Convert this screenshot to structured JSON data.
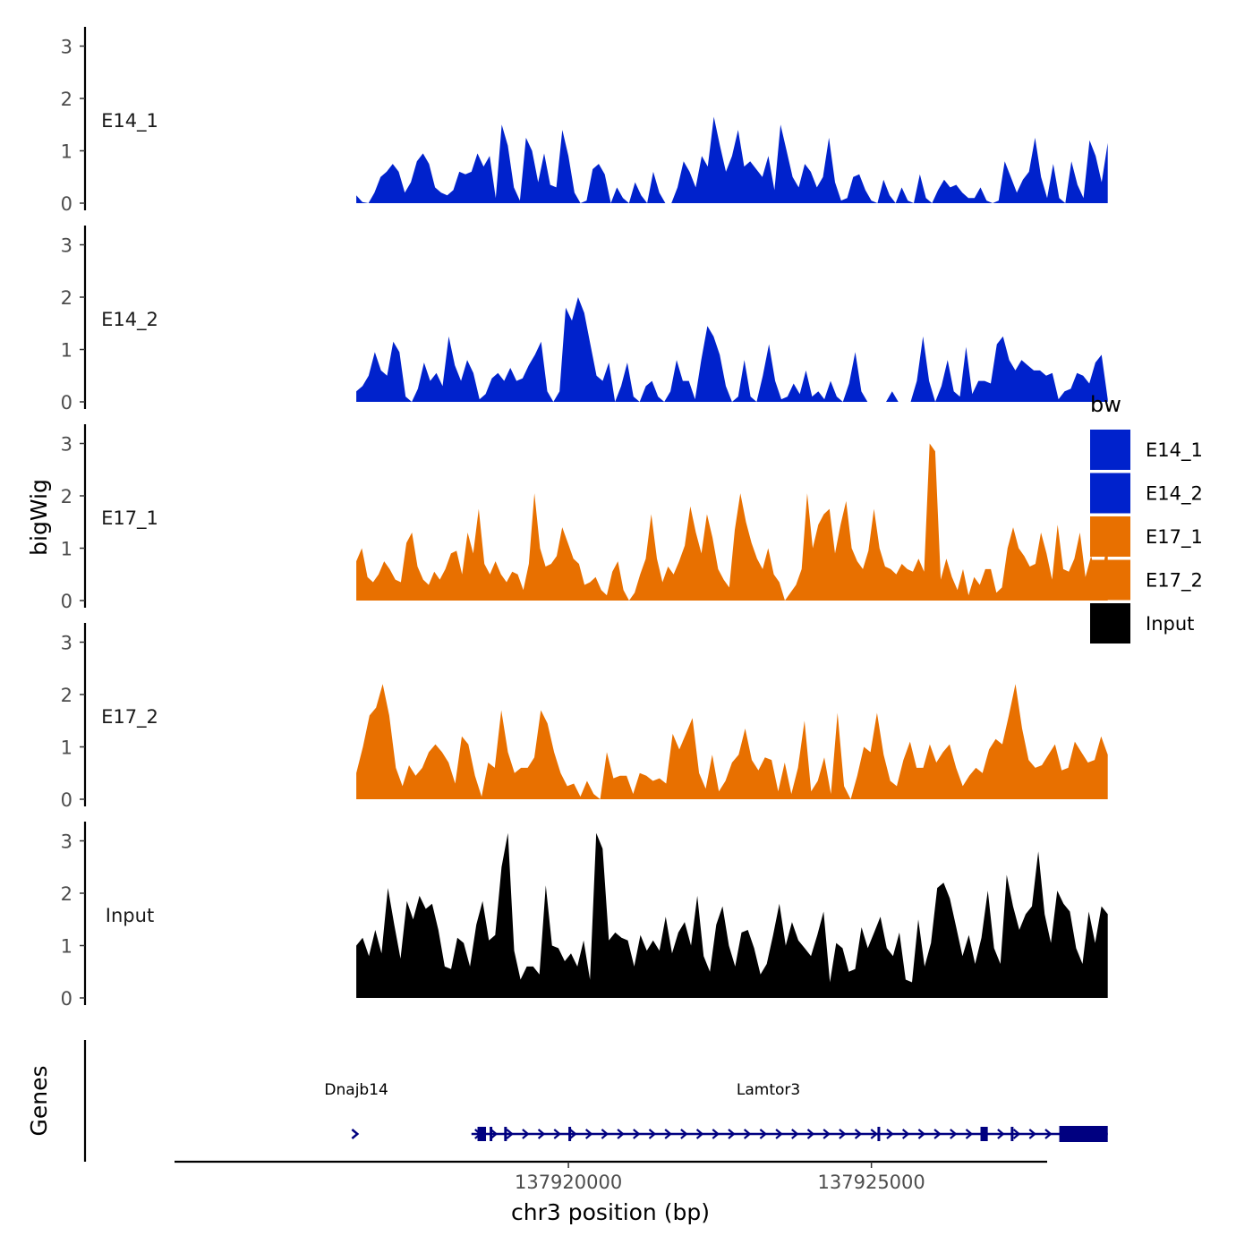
{
  "chart_data": {
    "type": "area",
    "title": "",
    "xlabel": "chr3 position (bp)",
    "ylabel": "bigWig",
    "genes_label": "Genes",
    "xlim": [
      137913500,
      137927900
    ],
    "x_ticks": [
      {
        "value": 137920000,
        "label": "137920000"
      },
      {
        "value": 137925000,
        "label": "137925000"
      }
    ],
    "ylim": [
      0,
      3.3
    ],
    "y_ticks": [
      {
        "value": 0,
        "label": "0"
      },
      {
        "value": 1,
        "label": "1"
      },
      {
        "value": 2,
        "label": "2"
      },
      {
        "value": 3,
        "label": "3"
      }
    ],
    "x_start": 137916500,
    "x_end": 137928900,
    "legend": {
      "title": "bw",
      "items": [
        {
          "name": "E14_1",
          "color": "#0022cc"
        },
        {
          "name": "E14_2",
          "color": "#0022cc"
        },
        {
          "name": "E17_1",
          "color": "#e87000"
        },
        {
          "name": "E17_2",
          "color": "#e87000"
        },
        {
          "name": "Input",
          "color": "#000000"
        }
      ]
    },
    "series": [
      {
        "name": "E14_1",
        "color": "#0022cc",
        "values": [
          0.15,
          0.02,
          0,
          0.2,
          0.5,
          0.6,
          0.75,
          0.6,
          0.2,
          0.4,
          0.8,
          0.95,
          0.75,
          0.3,
          0.2,
          0.15,
          0.25,
          0.6,
          0.55,
          0.6,
          0.95,
          0.7,
          0.9,
          0.1,
          1.5,
          1.1,
          0.3,
          0.05,
          1.25,
          1.0,
          0.4,
          0.95,
          0.35,
          0.3,
          1.4,
          0.9,
          0.2,
          0,
          0.05,
          0.65,
          0.75,
          0.55,
          0,
          0.3,
          0.1,
          0,
          0.4,
          0.15,
          0,
          0.6,
          0.2,
          0,
          0,
          0.3,
          0.8,
          0.6,
          0.3,
          0.9,
          0.7,
          1.65,
          1.1,
          0.6,
          0.9,
          1.4,
          0.7,
          0.8,
          0.65,
          0.5,
          0.9,
          0.25,
          1.5,
          1.0,
          0.5,
          0.3,
          0.75,
          0.6,
          0.3,
          0.5,
          1.25,
          0.4,
          0.05,
          0.1,
          0.5,
          0.55,
          0.25,
          0.05,
          0,
          0.45,
          0.15,
          0,
          0.3,
          0.05,
          0,
          0.55,
          0.1,
          0,
          0.25,
          0.45,
          0.3,
          0.35,
          0.2,
          0.1,
          0.1,
          0.3,
          0.05,
          0,
          0.05,
          0.8,
          0.5,
          0.2,
          0.45,
          0.6,
          1.25,
          0.5,
          0.1,
          0.75,
          0.1,
          0,
          0.8,
          0.35,
          0.1,
          1.2,
          0.9,
          0.4,
          1.15
        ],
        "label_key": "E14_1"
      },
      {
        "name": "E14_2",
        "color": "#0022cc",
        "values": [
          0.2,
          0.3,
          0.5,
          0.95,
          0.6,
          0.5,
          1.15,
          0.95,
          0.1,
          0,
          0.25,
          0.75,
          0.4,
          0.55,
          0.3,
          1.25,
          0.7,
          0.4,
          0.8,
          0.55,
          0.05,
          0.15,
          0.45,
          0.55,
          0.4,
          0.65,
          0.4,
          0.45,
          0.7,
          0.9,
          1.15,
          0.2,
          0,
          0.2,
          1.8,
          1.55,
          2.0,
          1.7,
          1.1,
          0.5,
          0.4,
          0.75,
          0,
          0.3,
          0.75,
          0.1,
          0,
          0.3,
          0.4,
          0.1,
          0,
          0.2,
          0.8,
          0.4,
          0.4,
          0.05,
          0.8,
          1.45,
          1.25,
          0.9,
          0.3,
          0,
          0.1,
          0.8,
          0.1,
          0,
          0.5,
          1.1,
          0.4,
          0.05,
          0.1,
          0.35,
          0.15,
          0.6,
          0.1,
          0.2,
          0.05,
          0.4,
          0.1,
          0,
          0.35,
          0.95,
          0.2,
          0,
          0,
          0,
          0,
          0.2,
          0,
          0,
          0,
          0.4,
          1.25,
          0.4,
          0,
          0.3,
          0.8,
          0.2,
          0.1,
          1.05,
          0.15,
          0.4,
          0.4,
          0.35,
          1.1,
          1.25,
          0.8,
          0.6,
          0.8,
          0.7,
          0.6,
          0.6,
          0.5,
          0.55,
          0.05,
          0.2,
          0.25,
          0.55,
          0.5,
          0.35,
          0.75,
          0.9,
          0.05
        ],
        "label_key": "E14_2"
      },
      {
        "name": "E17_1",
        "color": "#e87000",
        "values": [
          0.75,
          1.0,
          0.45,
          0.35,
          0.5,
          0.75,
          0.6,
          0.4,
          0.35,
          1.1,
          1.3,
          0.65,
          0.4,
          0.3,
          0.55,
          0.4,
          0.6,
          0.9,
          0.95,
          0.5,
          1.3,
          0.9,
          1.75,
          0.7,
          0.5,
          0.75,
          0.5,
          0.35,
          0.55,
          0.5,
          0.2,
          0.7,
          2.05,
          1.0,
          0.65,
          0.7,
          0.85,
          1.4,
          1.1,
          0.8,
          0.7,
          0.3,
          0.35,
          0.45,
          0.2,
          0.1,
          0.55,
          0.75,
          0.2,
          0,
          0.15,
          0.5,
          0.8,
          1.65,
          0.8,
          0.35,
          0.65,
          0.5,
          0.75,
          1.05,
          1.8,
          1.3,
          0.9,
          1.65,
          1.2,
          0.6,
          0.4,
          0.25,
          1.35,
          2.05,
          1.5,
          1.1,
          0.8,
          0.6,
          1.0,
          0.5,
          0.35,
          0,
          0.15,
          0.3,
          0.6,
          2.05,
          1.0,
          1.45,
          1.65,
          1.75,
          0.9,
          1.45,
          1.9,
          1.0,
          0.75,
          0.6,
          0.95,
          1.75,
          1.0,
          0.65,
          0.6,
          0.5,
          0.7,
          0.6,
          0.55,
          0.8,
          0.55,
          3.0,
          2.85,
          0.4,
          0.8,
          0.45,
          0.2,
          0.6,
          0.1,
          0.45,
          0.3,
          0.6,
          0.6,
          0.15,
          0.25,
          1.0,
          1.4,
          1.0,
          0.85,
          0.65,
          0.7,
          1.3,
          0.9,
          0.4,
          1.45,
          0.6,
          0.55,
          0.8,
          1.3,
          0.45,
          0.85,
          0.45,
          0.5,
          1.2
        ],
        "label_key": "E17_1"
      },
      {
        "name": "E17_2",
        "color": "#e87000",
        "values": [
          0.5,
          1.0,
          1.6,
          1.75,
          2.2,
          1.6,
          0.6,
          0.25,
          0.65,
          0.45,
          0.6,
          0.9,
          1.05,
          0.9,
          0.7,
          0.3,
          1.2,
          1.05,
          0.45,
          0.05,
          0.7,
          0.6,
          1.7,
          0.9,
          0.5,
          0.6,
          0.6,
          0.8,
          1.7,
          1.45,
          0.9,
          0.5,
          0.25,
          0.3,
          0.05,
          0.35,
          0.1,
          0,
          0.9,
          0.4,
          0.45,
          0.45,
          0.1,
          0.5,
          0.45,
          0.35,
          0.4,
          0.3,
          1.25,
          0.95,
          1.25,
          1.55,
          0.5,
          0.2,
          0.85,
          0.15,
          0.35,
          0.7,
          0.85,
          1.35,
          0.75,
          0.55,
          0.8,
          0.75,
          0.15,
          0.7,
          0.1,
          0.6,
          1.5,
          0.15,
          0.35,
          0.8,
          0.1,
          1.65,
          0.25,
          0,
          0.45,
          1.0,
          0.9,
          1.65,
          0.85,
          0.35,
          0.25,
          0.75,
          1.1,
          0.6,
          0.6,
          1.05,
          0.7,
          0.9,
          1.05,
          0.6,
          0.25,
          0.45,
          0.6,
          0.5,
          0.95,
          1.15,
          1.05,
          1.6,
          2.2,
          1.35,
          0.75,
          0.6,
          0.65,
          0.85,
          1.05,
          0.55,
          0.6,
          1.1,
          0.9,
          0.7,
          0.75,
          1.2,
          0.85
        ],
        "label_key": "E17_2"
      },
      {
        "name": "Input",
        "color": "#000000",
        "values": [
          1.0,
          1.15,
          0.8,
          1.3,
          0.85,
          2.1,
          1.4,
          0.75,
          1.85,
          1.5,
          1.95,
          1.7,
          1.8,
          1.3,
          0.6,
          0.55,
          1.15,
          1.05,
          0.6,
          1.4,
          1.85,
          1.1,
          1.2,
          2.5,
          3.15,
          0.9,
          0.35,
          0.6,
          0.6,
          0.45,
          2.15,
          1.0,
          0.95,
          0.7,
          0.85,
          0.6,
          1.1,
          0.35,
          3.15,
          2.85,
          1.1,
          1.25,
          1.15,
          1.1,
          0.6,
          1.2,
          0.9,
          1.1,
          0.9,
          1.55,
          0.85,
          1.25,
          1.45,
          1.0,
          1.95,
          0.8,
          0.5,
          1.4,
          1.75,
          1.0,
          0.6,
          1.25,
          1.3,
          0.95,
          0.45,
          0.65,
          1.2,
          1.8,
          1.0,
          1.45,
          1.1,
          0.95,
          0.8,
          1.2,
          1.65,
          0.3,
          1.05,
          0.95,
          0.5,
          0.55,
          1.35,
          0.95,
          1.25,
          1.55,
          0.95,
          0.8,
          1.25,
          0.35,
          0.3,
          1.5,
          0.6,
          1.05,
          2.1,
          2.2,
          1.9,
          1.35,
          0.8,
          1.2,
          0.65,
          1.15,
          2.05,
          0.95,
          0.65,
          2.35,
          1.75,
          1.3,
          1.6,
          1.75,
          2.8,
          1.6,
          1.05,
          2.05,
          1.8,
          1.65,
          0.95,
          0.65,
          1.65,
          1.05,
          1.75,
          1.6
        ],
        "label_key": "Input"
      }
    ],
    "genes": [
      {
        "name": "Dnajb14",
        "start": 137916400,
        "end": 137916600,
        "exons": [],
        "label_position": 137916500
      },
      {
        "name": "Lamtor3",
        "start": 137918400,
        "end": 137928900,
        "exons": [
          [
            137918500,
            137918640
          ],
          [
            137918700,
            137918740
          ],
          [
            137918940,
            137918980
          ],
          [
            137920000,
            137920040
          ],
          [
            137925100,
            137925140
          ],
          [
            137926800,
            137926920
          ],
          [
            137927300,
            137927340
          ],
          [
            137928100,
            137928900
          ]
        ],
        "label_position": 137923300
      }
    ],
    "gene_color": "#000080"
  }
}
